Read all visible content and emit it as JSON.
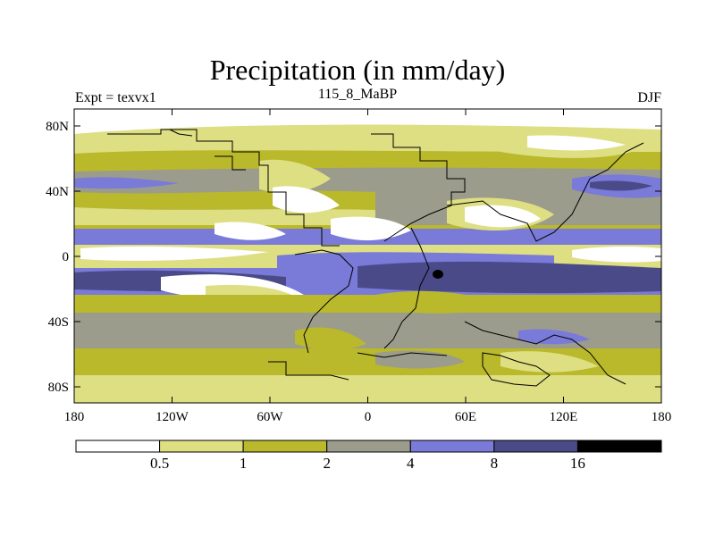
{
  "title": "Precipitation (in mm/day)",
  "subtitle_left": "Expt = texvx1",
  "subtitle_center": "115_8_MaBP",
  "subtitle_right": "DJF",
  "y_ticks": [
    "80N",
    "40N",
    "0",
    "40S",
    "80S"
  ],
  "x_ticks": [
    "180",
    "120W",
    "60W",
    "0",
    "60E",
    "120E",
    "180"
  ],
  "colorbar": {
    "labels": [
      "0.5",
      "1",
      "2",
      "4",
      "8",
      "16"
    ],
    "colors": [
      "#ffffff",
      "#dede82",
      "#b9b92b",
      "#9c9c8c",
      "#7a7ad8",
      "#4a4a88",
      "#000000"
    ]
  }
}
